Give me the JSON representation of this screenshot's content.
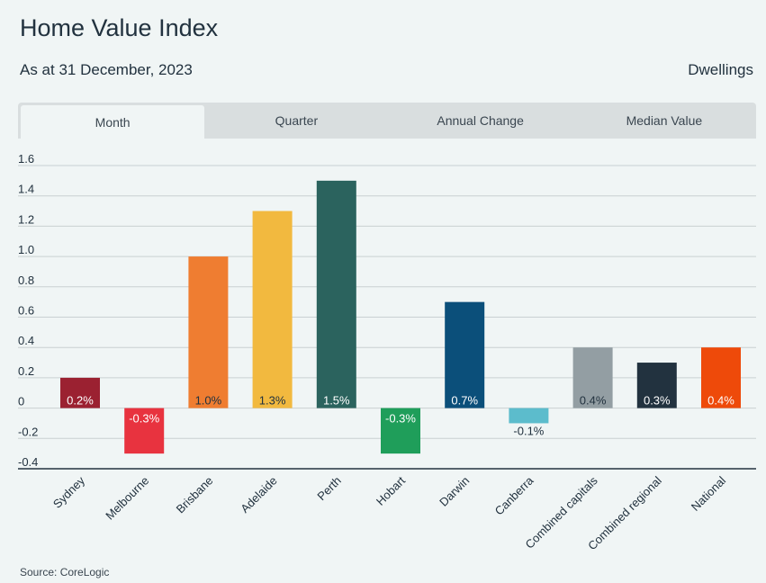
{
  "header": {
    "title": "Home Value Index",
    "subtitle": "As at 31 December, 2023",
    "category": "Dwellings"
  },
  "tabs": [
    {
      "label": "Month",
      "active": true
    },
    {
      "label": "Quarter",
      "active": false
    },
    {
      "label": "Annual Change",
      "active": false
    },
    {
      "label": "Median Value",
      "active": false
    }
  ],
  "footer": {
    "source": "Source: CoreLogic"
  },
  "chart_data": {
    "type": "bar",
    "categories": [
      "Sydney",
      "Melbourne",
      "Brisbane",
      "Adelaide",
      "Perth",
      "Hobart",
      "Darwin",
      "Canberra",
      "Combined capitals",
      "Combined regional",
      "National"
    ],
    "values": [
      0.2,
      -0.3,
      1.0,
      1.3,
      1.5,
      -0.3,
      0.7,
      -0.1,
      0.4,
      0.3,
      0.4
    ],
    "labels": [
      "0.2%",
      "-0.3%",
      "1.0%",
      "1.3%",
      "1.5%",
      "-0.3%",
      "0.7%",
      "-0.1%",
      "0.4%",
      "0.3%",
      "0.4%"
    ],
    "colors": [
      "#9b2131",
      "#e8333f",
      "#ef7d31",
      "#f2b93f",
      "#2b635e",
      "#1f9e5a",
      "#0b4f7a",
      "#5cbccc",
      "#939ea3",
      "#22323f",
      "#ee4a0a"
    ],
    "label_colors": [
      "#ffffff",
      "#ffffff",
      "#22323f",
      "#22323f",
      "#ffffff",
      "#ffffff",
      "#ffffff",
      "#22323f",
      "#22323f",
      "#ffffff",
      "#ffffff"
    ],
    "yticks": [
      "1.6",
      "1.4",
      "1.2",
      "1.0",
      "0.8",
      "0.6",
      "0.4",
      "0.2",
      "0",
      "-0.2",
      "-0.4"
    ],
    "ylim": [
      -0.4,
      1.6
    ],
    "grid": true,
    "legend": "none"
  }
}
